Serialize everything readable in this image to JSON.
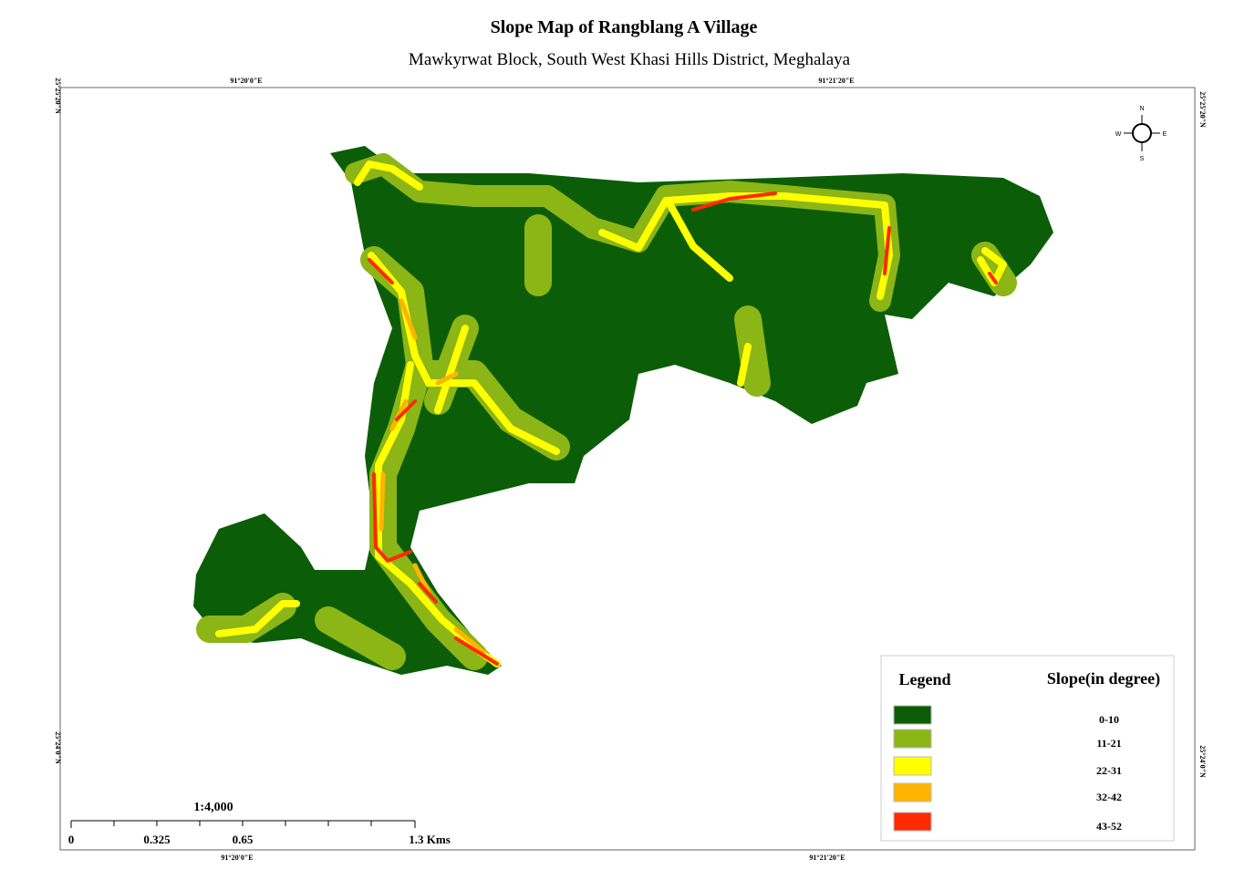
{
  "title": "Slope Map of Rangblang A Village",
  "subtitle": "Mawkyrwat  Block, South West Khasi Hills District, Meghalaya",
  "coordinates": {
    "top": [
      "91°20'0\"E",
      "91°21'20\"E"
    ],
    "bottom": [
      "91°20'0\"E",
      "91°21'20\"E"
    ],
    "left": [
      "25°25'20\"N",
      "25°24'0\"N"
    ],
    "right": [
      "25°25'20\"N",
      "25°24'0\"N"
    ]
  },
  "north_arrow": {
    "n": "N",
    "e": "E",
    "s": "S",
    "w": "W"
  },
  "legend": {
    "title": "Legend",
    "heading": "Slope(in degree)",
    "items": [
      {
        "label": "0-10",
        "color": "#0b5e07"
      },
      {
        "label": "11-21",
        "color": "#8cb516"
      },
      {
        "label": "22-31",
        "color": "#ffff00"
      },
      {
        "label": "32-42",
        "color": "#ffb400"
      },
      {
        "label": "43-52",
        "color": "#ff2a00"
      }
    ]
  },
  "scale": {
    "ratio": "1:4,000",
    "labels": [
      "0",
      "0.325",
      "0.65",
      "1.3 Kms"
    ]
  }
}
